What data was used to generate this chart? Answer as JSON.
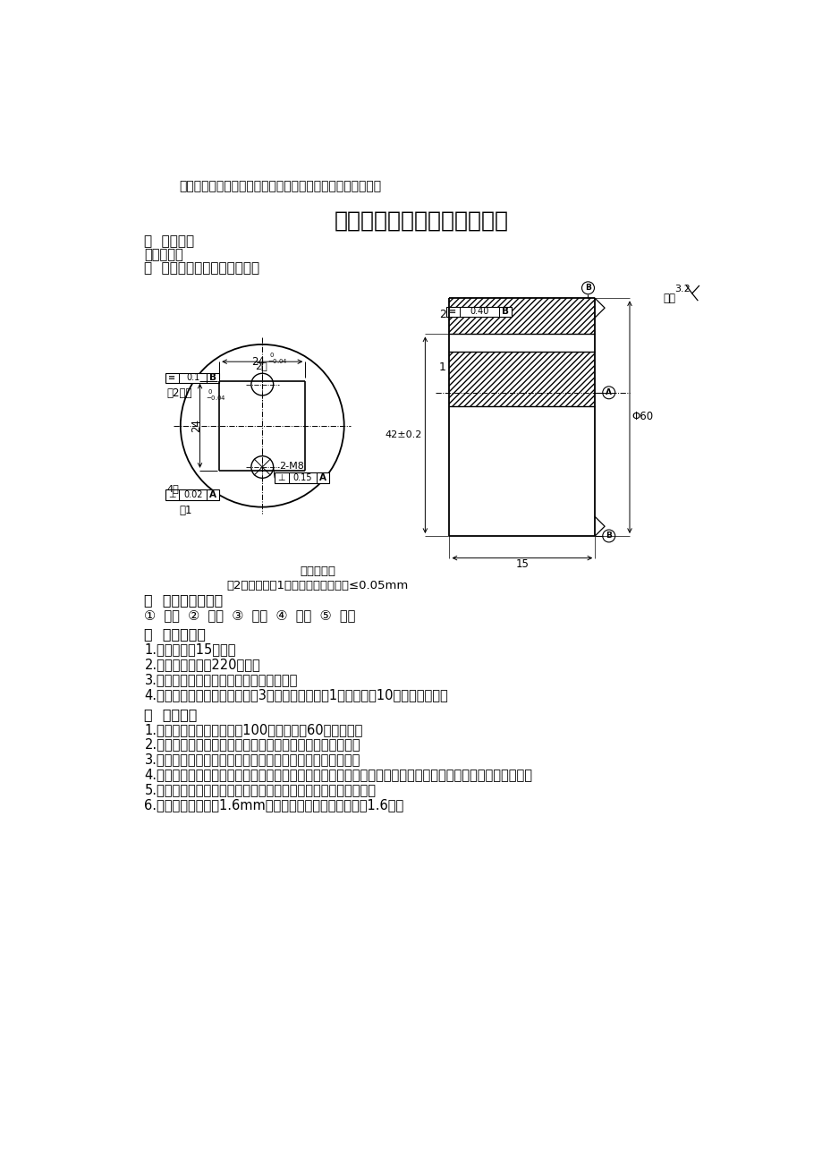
{
  "background_color": "#ffffff",
  "header_label": "标题：安泰公司内部技能鉴定－机修钳工高级工实际操作项目",
  "main_title": "技术比武实际考试题（钳工）",
  "section1_title": "一  试题名称",
  "section1_content": "四方镶配件",
  "section2_title": "二  试题文字或图标的技术说明",
  "tech_note_title": "技术要求：",
  "tech_note_content": "件2正方孔按件1配做，配合互换间隙≤0.05mm",
  "section3_title": "三  操作要点的说明",
  "section3_content": "①  划线  ②  锯削  ③  锉削  ④  钻孔  ⑤  攻丝",
  "section4_title": "四  考核总时限",
  "section4_items": [
    "1.准备时间：15分钟。",
    "2.正式操作时间：220分钟。",
    "3.计时从领取工件开始，至完工交件结束。",
    "4.规定时间内全部完成，每超时3分钟，从总分中扣1分，总超时10分钟停止作业。"
  ],
  "section5_title": "五  考核评分",
  "section5_items": [
    "1.本技能试卷采用百分制，100分为满分，60分为及格。",
    "2.各项制的配分是依据考件精度的高低及加工难易程度而定。",
    "3.每一检测尺寸的检测点应不少于两点，并以最大误差计算。",
    "4.按单项记分、扣分；同一项目中，有相同内容的，单独检测，单独评分，若该处不合格，仅扣该处所占配分。",
    "5.凡有对称、互换、调面要求的考件，均按换位后最大误差计算。",
    "6.属镶配件，口端深1.6mm处间隙应不大于其配合间隙的1.6倍。"
  ],
  "roughness_note": "其余",
  "roughness_value": "3.2"
}
